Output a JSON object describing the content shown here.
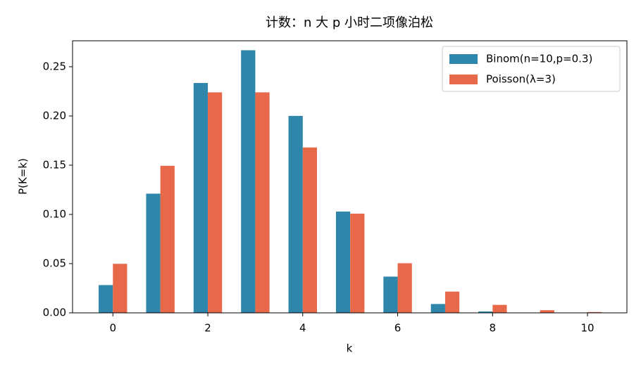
{
  "chart_data": {
    "type": "bar",
    "title": "计数：n 大 p 小时二项像泊松",
    "xlabel": "k",
    "ylabel": "P(K=k)",
    "x": [
      0,
      1,
      2,
      3,
      4,
      5,
      6,
      7,
      8,
      9,
      10
    ],
    "series": [
      {
        "name": "Binom(n=10,p=0.3)",
        "color": "#2e86ab",
        "values": [
          0.0282,
          0.1211,
          0.2335,
          0.2668,
          0.2001,
          0.1029,
          0.0368,
          0.009,
          0.0014,
          0.0001,
          0.0
        ]
      },
      {
        "name": "Poisson(λ=3)",
        "color": "#e8684a",
        "values": [
          0.0498,
          0.1494,
          0.224,
          0.224,
          0.168,
          0.1008,
          0.0504,
          0.0216,
          0.0081,
          0.0027,
          0.0008
        ]
      }
    ],
    "xlim": [
      -0.85,
      10.83
    ],
    "ylim": [
      0,
      0.2764
    ],
    "xticks": [
      0,
      2,
      4,
      6,
      8,
      10
    ],
    "yticks": [
      {
        "value": 0,
        "label": "0.00"
      },
      {
        "value": 0.05,
        "label": "0.05"
      },
      {
        "value": 0.1,
        "label": "0.10"
      },
      {
        "value": 0.15,
        "label": "0.15"
      },
      {
        "value": 0.2,
        "label": "0.20"
      },
      {
        "value": 0.25,
        "label": "0.25"
      }
    ],
    "legend": "upper right"
  }
}
